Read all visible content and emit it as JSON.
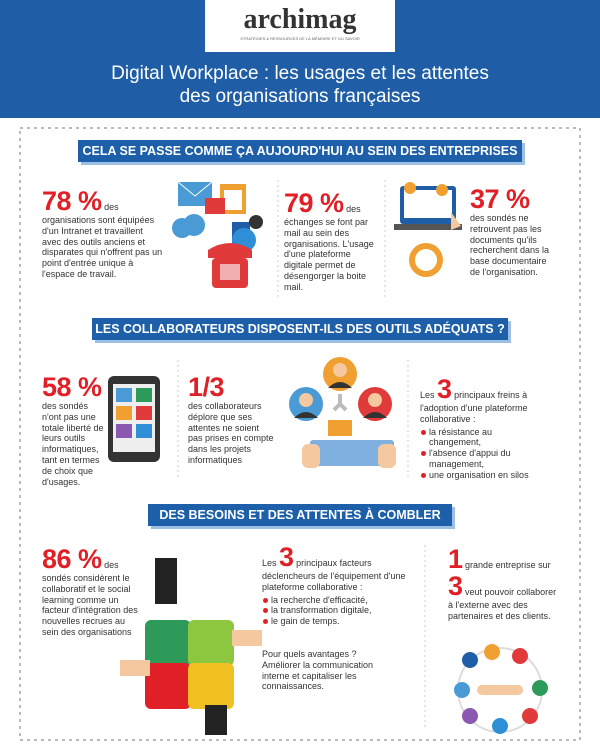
{
  "header": {
    "logo": "archimag",
    "logo_tagline": "STRATÉGIES & RESSOURCES DE LA MÉMOIRE ET DU SAVOIR",
    "title_line_1": "Digital Workplace : les usages et les attentes",
    "title_line_2": "des organisations françaises"
  },
  "sections": [
    {
      "heading": "CELA SE PASSE COMME ÇA AUJOURD'HUI AU SEIN DES ENTREPRISES",
      "items": [
        {
          "figure": "78 %",
          "text": "des organisations sont équipées d'un Intranet et travaillent avec des outils anciens et disparates qui n'offrent pas un point d'entrée unique à l'espace de travail."
        },
        {
          "figure": "79 %",
          "text": "des échanges se font par mail au sein des organisations. L'usage d'une plateforme digitale permet de désengorger la boite mail."
        },
        {
          "figure": "37 %",
          "text": "des sondés ne retrouvent pas les documents qu'ils recherchent dans la base documentaire de l'organisation."
        }
      ]
    },
    {
      "heading": "LES COLLABORATEURS DISPOSENT-ILS DES OUTILS ADÉQUATS ?",
      "items": [
        {
          "figure": "58 %",
          "text": "des sondés n'ont pas une totale liberté de leurs outils informatiques, tant en termes de choix que d'usages."
        },
        {
          "figure": "1/3",
          "text": "des collaborateurs déplore que ses attentes ne soient pas prises en compte dans les projets informatiques"
        },
        {
          "lead": "Les",
          "figure": "3",
          "text": "principaux freins à l'adoption d'une plateforme collaborative :",
          "bullets": [
            "la résistance au changement,",
            "l'absence d'appui du management,",
            "une organisation en silos"
          ]
        }
      ]
    },
    {
      "heading": "DES BESOINS ET DES ATTENTES À COMBLER",
      "items": [
        {
          "figure": "86 %",
          "text": "des sondés considèrent le collaboratif et le social learning comme un facteur d'intégration des nouvelles recrues au sein des organisations"
        },
        {
          "lead": "Les",
          "figure": "3",
          "text": "principaux facteurs déclencheurs de l'équipement d'une plateforme collaborative :",
          "bullets": [
            "la recherche d'efficacité,",
            "la transformation digitale,",
            "le gain de temps."
          ],
          "note": "Pour quels avantages ? Améliorer la communication interne et capitaliser les connaissances."
        },
        {
          "figure": "1",
          "text": "grande entreprise sur",
          "figure_2": "3",
          "text_2": "veut pouvoir collaborer à l'externe avec des partenaires et des clients."
        }
      ]
    }
  ]
}
